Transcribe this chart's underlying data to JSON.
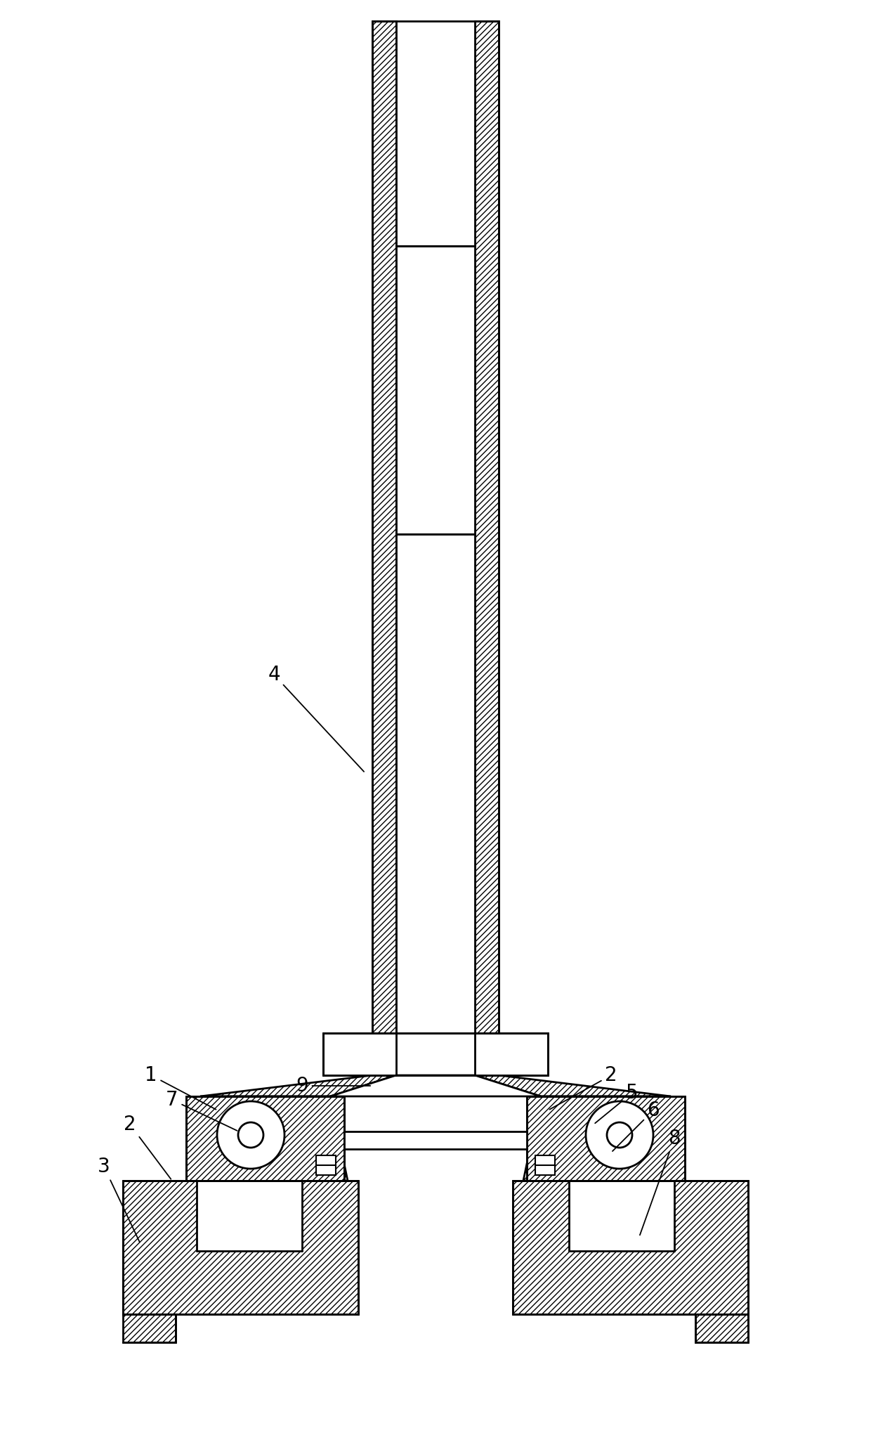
{
  "bg_color": "#ffffff",
  "line_color": "#000000",
  "fig_width": 12.4,
  "fig_height": 20.49,
  "label_fontsize": 20
}
